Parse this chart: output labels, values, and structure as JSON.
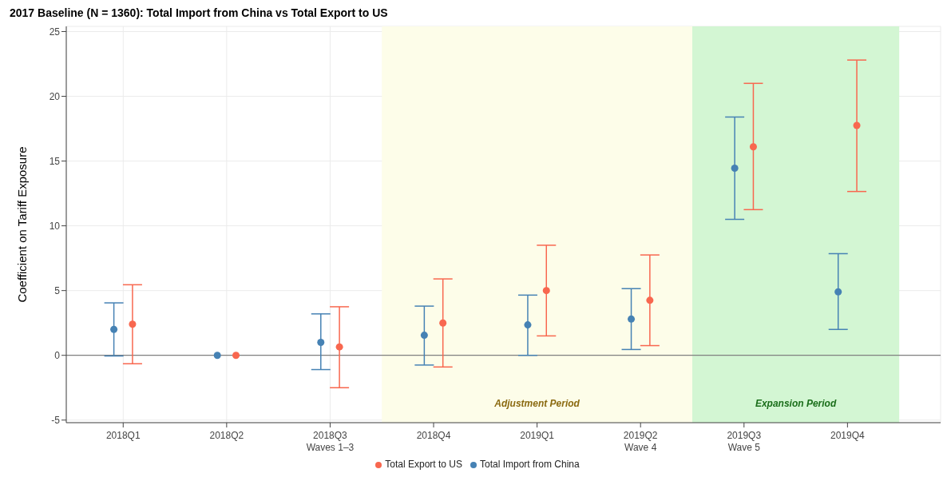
{
  "chart_data": {
    "type": "scatter",
    "title": "2017 Baseline (N = 1360): Total Import from China vs Total Export to US",
    "ylabel": "Coefficient on Tariff Exposure",
    "categories": [
      "2018Q1",
      "2018Q2",
      "2018Q3\nWaves 1–3",
      "2018Q4",
      "2019Q1",
      "2019Q2\nWave 4",
      "2019Q3\nWave 5",
      "2019Q4"
    ],
    "series": [
      {
        "name": "Total Export to US",
        "color": "#f8674f",
        "values": [
          2.4,
          0,
          0.65,
          2.5,
          5.0,
          4.25,
          16.1,
          17.75
        ],
        "errors": [
          [
            -0.65,
            5.45
          ],
          null,
          [
            -2.5,
            3.75
          ],
          [
            -0.9,
            5.9
          ],
          [
            1.5,
            8.5
          ],
          [
            0.75,
            7.75
          ],
          [
            11.25,
            21.0
          ],
          [
            12.65,
            22.8
          ]
        ]
      },
      {
        "name": "Total Import from China",
        "color": "#4682b4",
        "values": [
          2.0,
          0,
          1.0,
          1.55,
          2.35,
          2.8,
          14.45,
          4.9
        ],
        "errors": [
          [
            -0.05,
            4.05
          ],
          null,
          [
            -1.1,
            3.2
          ],
          [
            -0.75,
            3.8
          ],
          [
            0.0,
            4.65
          ],
          [
            0.45,
            5.15
          ],
          [
            10.5,
            18.4
          ],
          [
            2.0,
            7.85
          ]
        ]
      }
    ],
    "ylim": [
      -5.2,
      25.4
    ],
    "yticks": [
      -5,
      0,
      5,
      10,
      15,
      20,
      25
    ],
    "grid": true,
    "legend": "bottom",
    "marker": "circle",
    "ref_lines": [
      {
        "axis": "y",
        "value": 0,
        "color": "#808080"
      }
    ],
    "bands": [
      {
        "axis": "x",
        "from": "2018Q4",
        "to": "2019Q2\nWave 4",
        "label": "Adjustment Period",
        "color": "#fdfde9"
      },
      {
        "axis": "x",
        "from": "2019Q3\nWave 5",
        "to": "2019Q4",
        "label": "Expansion Period",
        "color": "#d3f6d3"
      }
    ]
  }
}
